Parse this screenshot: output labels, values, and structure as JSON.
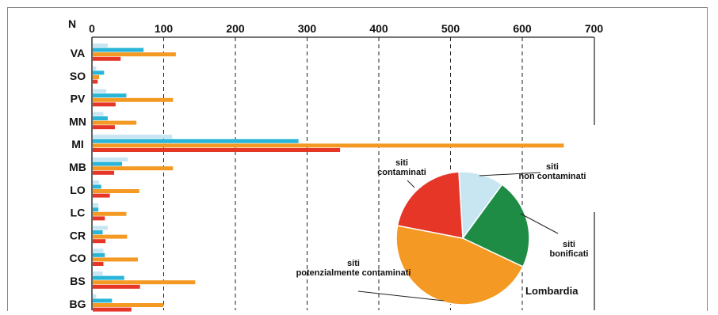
{
  "chart_data": {
    "type": "bar",
    "orientation": "horizontal",
    "axis_label": "N",
    "xlim": [
      0,
      700
    ],
    "x_ticks": [
      "0",
      "100",
      "200",
      "300",
      "400",
      "500",
      "600",
      "700"
    ],
    "grid": "dashed vertical",
    "categories": [
      "VA",
      "SO",
      "PV",
      "MN",
      "MI",
      "MB",
      "LO",
      "LC",
      "CR",
      "CO",
      "BS",
      "BG"
    ],
    "series": [
      {
        "color": "#c8e6f2",
        "values": [
          22,
          6,
          20,
          16,
          112,
          50,
          10,
          9,
          22,
          16,
          15,
          6
        ]
      },
      {
        "color": "#29b5d8",
        "values": [
          72,
          17,
          48,
          22,
          288,
          42,
          13,
          9,
          15,
          18,
          45,
          28
        ]
      },
      {
        "color": "#f49a24",
        "values": [
          117,
          10,
          113,
          62,
          658,
          113,
          66,
          48,
          49,
          64,
          144,
          100
        ]
      },
      {
        "color": "#e53628",
        "values": [
          40,
          8,
          33,
          32,
          346,
          31,
          25,
          18,
          19,
          16,
          67,
          55
        ]
      }
    ],
    "inset_pie": {
      "type": "pie",
      "title": "Lombardia",
      "slices": [
        {
          "label": "siti non contaminati",
          "value": 11,
          "color": "#c8e6f2"
        },
        {
          "label": "siti bonificati",
          "value": 22,
          "color": "#1e8c44"
        },
        {
          "label": "siti potenzialmente contaminati",
          "value": 46,
          "color": "#f49a24"
        },
        {
          "label": "siti contaminati",
          "value": 21,
          "color": "#e53628"
        }
      ]
    }
  }
}
